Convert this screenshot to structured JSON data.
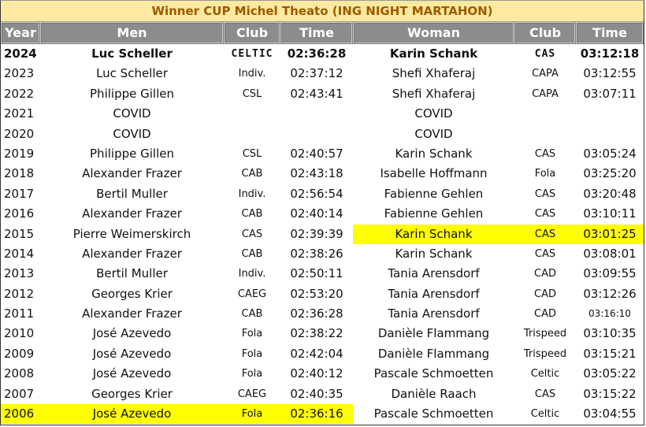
{
  "title": "Winner CUP Michel Theato (ING NIGHT MARTAHON)",
  "headers": [
    "Year",
    "Men",
    "Club",
    "Time",
    "Woman",
    "Club",
    "Time"
  ],
  "highlight_color": "#ffff00",
  "rows": [
    {
      "year": "2024",
      "men": "Luc Scheller",
      "men_club": "CELTIC",
      "men_time": "02:36:28",
      "woman": "Karin Schank",
      "woman_club": "CAS",
      "woman_time": "03:12:18"
    },
    {
      "year": "2023",
      "men": "Luc Scheller",
      "men_club": "Indiv.",
      "men_time": "02:37:12",
      "woman": "Shefi Xhaferaj",
      "woman_club": "CAPA",
      "woman_time": "03:12:55"
    },
    {
      "year": "2022",
      "men": "Philippe Gillen",
      "men_club": "CSL",
      "men_time": "02:43:41",
      "woman": "Shefi Xhaferaj",
      "woman_club": "CAPA",
      "woman_time": "03:07:11"
    },
    {
      "year": "2021",
      "men": "COVID",
      "men_club": "",
      "men_time": "",
      "woman": "COVID",
      "woman_club": "",
      "woman_time": ""
    },
    {
      "year": "2020",
      "men": "COVID",
      "men_club": "",
      "men_time": "",
      "woman": "COVID",
      "woman_club": "",
      "woman_time": ""
    },
    {
      "year": "2019",
      "men": "Philippe Gillen",
      "men_club": "CSL",
      "men_time": "02:40:57",
      "woman": "Karin Schank",
      "woman_club": "CAS",
      "woman_time": "03:05:24"
    },
    {
      "year": "2018",
      "men": "Alexander Frazer",
      "men_club": "CAB",
      "men_time": "02:43:18",
      "woman": "Isabelle Hoffmann",
      "woman_club": "Fola",
      "woman_time": "03:25:20"
    },
    {
      "year": "2017",
      "men": "Bertil Muller",
      "men_club": "Indiv.",
      "men_time": "02:56:54",
      "woman": "Fabienne Gehlen",
      "woman_club": "CAS",
      "woman_time": "03:20:48"
    },
    {
      "year": "2016",
      "men": "Alexander Frazer",
      "men_club": "CAB",
      "men_time": "02:40:14",
      "woman": "Fabienne Gehlen",
      "woman_club": "CAS",
      "woman_time": "03:10:11"
    },
    {
      "year": "2015",
      "men": "Pierre Weimerskirch",
      "men_club": "CAS",
      "men_time": "02:39:39",
      "woman": "Karin Schank",
      "woman_club": "CAS",
      "woman_time": "03:01:25"
    },
    {
      "year": "2014",
      "men": "Alexander Frazer",
      "men_club": "CAB",
      "men_time": "02:38:26",
      "woman": "Karin Schank",
      "woman_club": "CAS",
      "woman_time": "03:08:01"
    },
    {
      "year": "2013",
      "men": "Bertil Muller",
      "men_club": "Indiv.",
      "men_time": "02:50:11",
      "woman": "Tania Arensdorf",
      "woman_club": "CAD",
      "woman_time": "03:09:55"
    },
    {
      "year": "2012",
      "men": "Georges Krier",
      "men_club": "CAEG",
      "men_time": "02:53:20",
      "woman": "Tania Arensdorf",
      "woman_club": "CAD",
      "woman_time": "03:12:26"
    },
    {
      "year": "2011",
      "men": "Alexander Frazer",
      "men_club": "CAB",
      "men_time": "02:36:28",
      "woman": "Tania Arensdorf",
      "woman_club": "CAD",
      "woman_time": "03:16:10"
    },
    {
      "year": "2010",
      "men": "José Azevedo",
      "men_club": "Fola",
      "men_time": "02:38:22",
      "woman": "Danièle Flammang",
      "woman_club": "Trispeed",
      "woman_time": "03:10:35"
    },
    {
      "year": "2009",
      "men": "José Azevedo",
      "men_club": "Fola",
      "men_time": "02:42:04",
      "woman": "Danièle Flammang",
      "woman_club": "Trispeed",
      "woman_time": "03:15:21"
    },
    {
      "year": "2008",
      "men": "José Azevedo",
      "men_club": "Fola",
      "men_time": "02:40:12",
      "woman": "Pascale Schmoetten",
      "woman_club": "Celtic",
      "woman_time": "03:05:22"
    },
    {
      "year": "2007",
      "men": "Georges Krier",
      "men_club": "CAEG",
      "men_time": "02:40:35",
      "woman": "Danièle Raach",
      "woman_club": "CAS",
      "woman_time": "03:15:22"
    },
    {
      "year": "2006",
      "men": "José Azevedo",
      "men_club": "Fola",
      "men_time": "02:36:16",
      "woman": "Pascale Schmoetten",
      "woman_club": "Celtic",
      "woman_time": "03:04:55"
    }
  ],
  "highlighted": [
    {
      "row": "2015",
      "side": "woman"
    },
    {
      "row": "2006",
      "side": "men"
    }
  ]
}
